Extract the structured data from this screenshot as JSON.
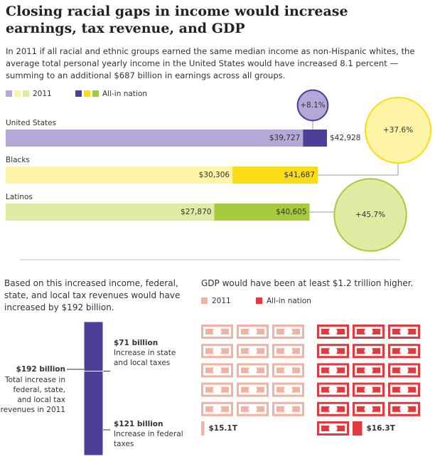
{
  "title": "Closing racial gaps in income would increase earnings, tax revenue, and GDP",
  "intro": "In 2011 if all racial and ethnic groups earned the same median income as non-Hispanic whites, the average total personal yearly income in the United States would have increased 8.1 percent — summing to an additional $687 billion in earnings across all groups.",
  "chart_data": [
    {
      "type": "overlap-bar",
      "categories": [
        "United States",
        "Blacks",
        "Latinos"
      ],
      "series": [
        {
          "name": "2011",
          "colors": [
            "#b6a8d6",
            "#fdf4a5",
            "#dfeaa3"
          ],
          "values": [
            39727,
            30306,
            27870
          ],
          "value_labels": [
            "$39,727",
            "$30,306",
            "$27,870"
          ]
        },
        {
          "name": "All-in nation",
          "colors": [
            "#4b3f98",
            "#f9dc14",
            "#a5cb3c"
          ],
          "values": [
            42928,
            41687,
            40605
          ],
          "value_labels": [
            "$42,928",
            "$41,687",
            "$40,605"
          ]
        }
      ],
      "increases": {
        "values": [
          8.1,
          37.6,
          45.7
        ],
        "value_labels": [
          "+8.1%",
          "+37.6%",
          "+45.7%"
        ]
      }
    },
    {
      "type": "stacked-bar",
      "intro": "Based on this increased income, federal, state, and local tax revenues would have increased by $192 billion.",
      "color": "#4b3f98",
      "total": {
        "value": 192,
        "label": "$192 billion",
        "description": "Total increase in federal, state, and local tax revenues in 2011"
      },
      "values": [
        71,
        121
      ],
      "value_labels": [
        "$71 billion",
        "$121 billion"
      ],
      "descriptions": [
        "Increase in state and local taxes",
        "Increase in federal taxes"
      ]
    },
    {
      "type": "pictograph",
      "intro": "GDP would have been at least $1.2 trillion higher.",
      "categories": [
        "2011",
        "All-in nation"
      ],
      "colors": [
        "#f4b0a0",
        "#e0393e"
      ],
      "values": [
        15.1,
        16.3
      ],
      "value_labels": [
        "$15.1T",
        "$16.3T"
      ]
    }
  ]
}
